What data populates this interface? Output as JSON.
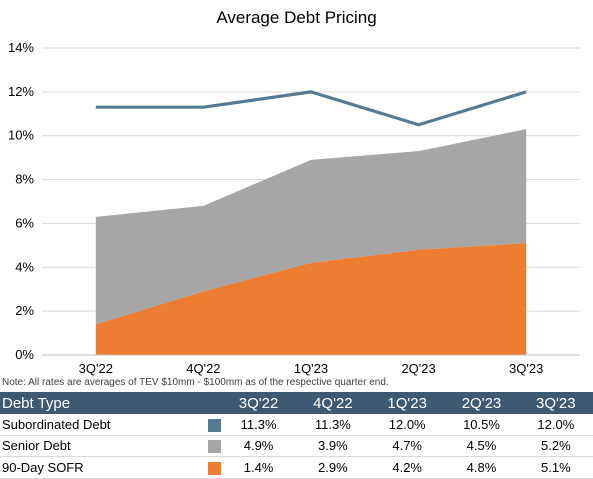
{
  "chart_data": {
    "type": "area",
    "title": "Average Debt Pricing",
    "categories": [
      "3Q'22",
      "4Q'22",
      "1Q'23",
      "2Q'23",
      "3Q'23"
    ],
    "ylim": [
      0,
      14
    ],
    "y_ticks": [
      "0%",
      "2%",
      "4%",
      "6%",
      "8%",
      "10%",
      "12%",
      "14%"
    ],
    "grid": true,
    "note": "Note: All rates are averages of  TEV $10mm - $100mm as of the respective quarter end.",
    "series": [
      {
        "name": "Subordinated Debt",
        "render": "line",
        "color": "#557b94",
        "values": [
          11.3,
          11.3,
          12.0,
          10.5,
          12.0
        ],
        "labels": [
          "11.3%",
          "11.3%",
          "12.0%",
          "10.5%",
          "12.0%"
        ]
      },
      {
        "name": "Senior Debt",
        "render": "stacked-area",
        "color": "#a6a6a6",
        "values": [
          4.9,
          3.9,
          4.7,
          4.5,
          5.2
        ],
        "labels": [
          "4.9%",
          "3.9%",
          "4.7%",
          "4.5%",
          "5.2%"
        ]
      },
      {
        "name": "90-Day SOFR",
        "render": "stacked-area",
        "color": "#ed7d31",
        "values": [
          1.4,
          2.9,
          4.2,
          4.8,
          5.1
        ],
        "labels": [
          "1.4%",
          "2.9%",
          "4.2%",
          "4.8%",
          "5.1%"
        ]
      }
    ],
    "table_header": "Debt Type"
  }
}
